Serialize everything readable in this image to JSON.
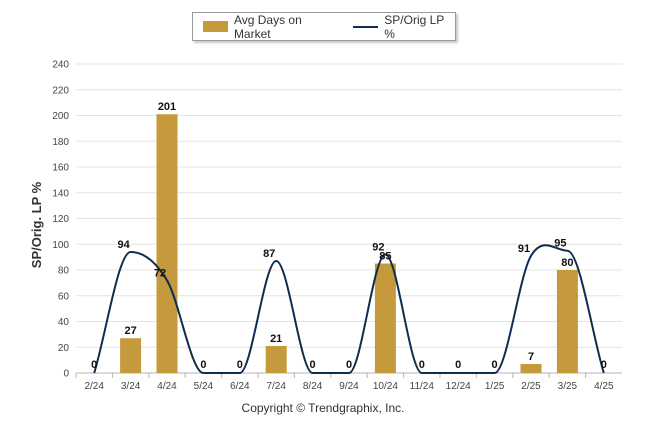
{
  "chart_data": {
    "type": "bar",
    "categories": [
      "2/24",
      "3/24",
      "4/24",
      "5/24",
      "6/24",
      "7/24",
      "8/24",
      "9/24",
      "10/24",
      "11/24",
      "12/24",
      "1/25",
      "2/25",
      "3/25",
      "4/25"
    ],
    "series": [
      {
        "name": "Avg Days on Market",
        "type": "bar",
        "color": "#c49a3c",
        "values": [
          0,
          27,
          201,
          0,
          0,
          21,
          0,
          0,
          85,
          0,
          0,
          0,
          7,
          80,
          0
        ]
      },
      {
        "name": "SP/Orig LP %",
        "type": "line",
        "color": "#0f2d4f",
        "values": [
          0,
          94,
          72,
          0,
          0,
          87,
          0,
          0,
          92,
          0,
          0,
          0,
          91,
          95,
          0
        ]
      }
    ],
    "ylabel": "SP/Orig. LP %",
    "xlabel": "",
    "ylim": [
      0,
      240
    ],
    "yticks": [
      0,
      20,
      40,
      60,
      80,
      100,
      120,
      140,
      160,
      180,
      200,
      220,
      240
    ],
    "grid": true,
    "legend_position": "top-center"
  },
  "footer": "Copyright © Trendgraphix, Inc."
}
